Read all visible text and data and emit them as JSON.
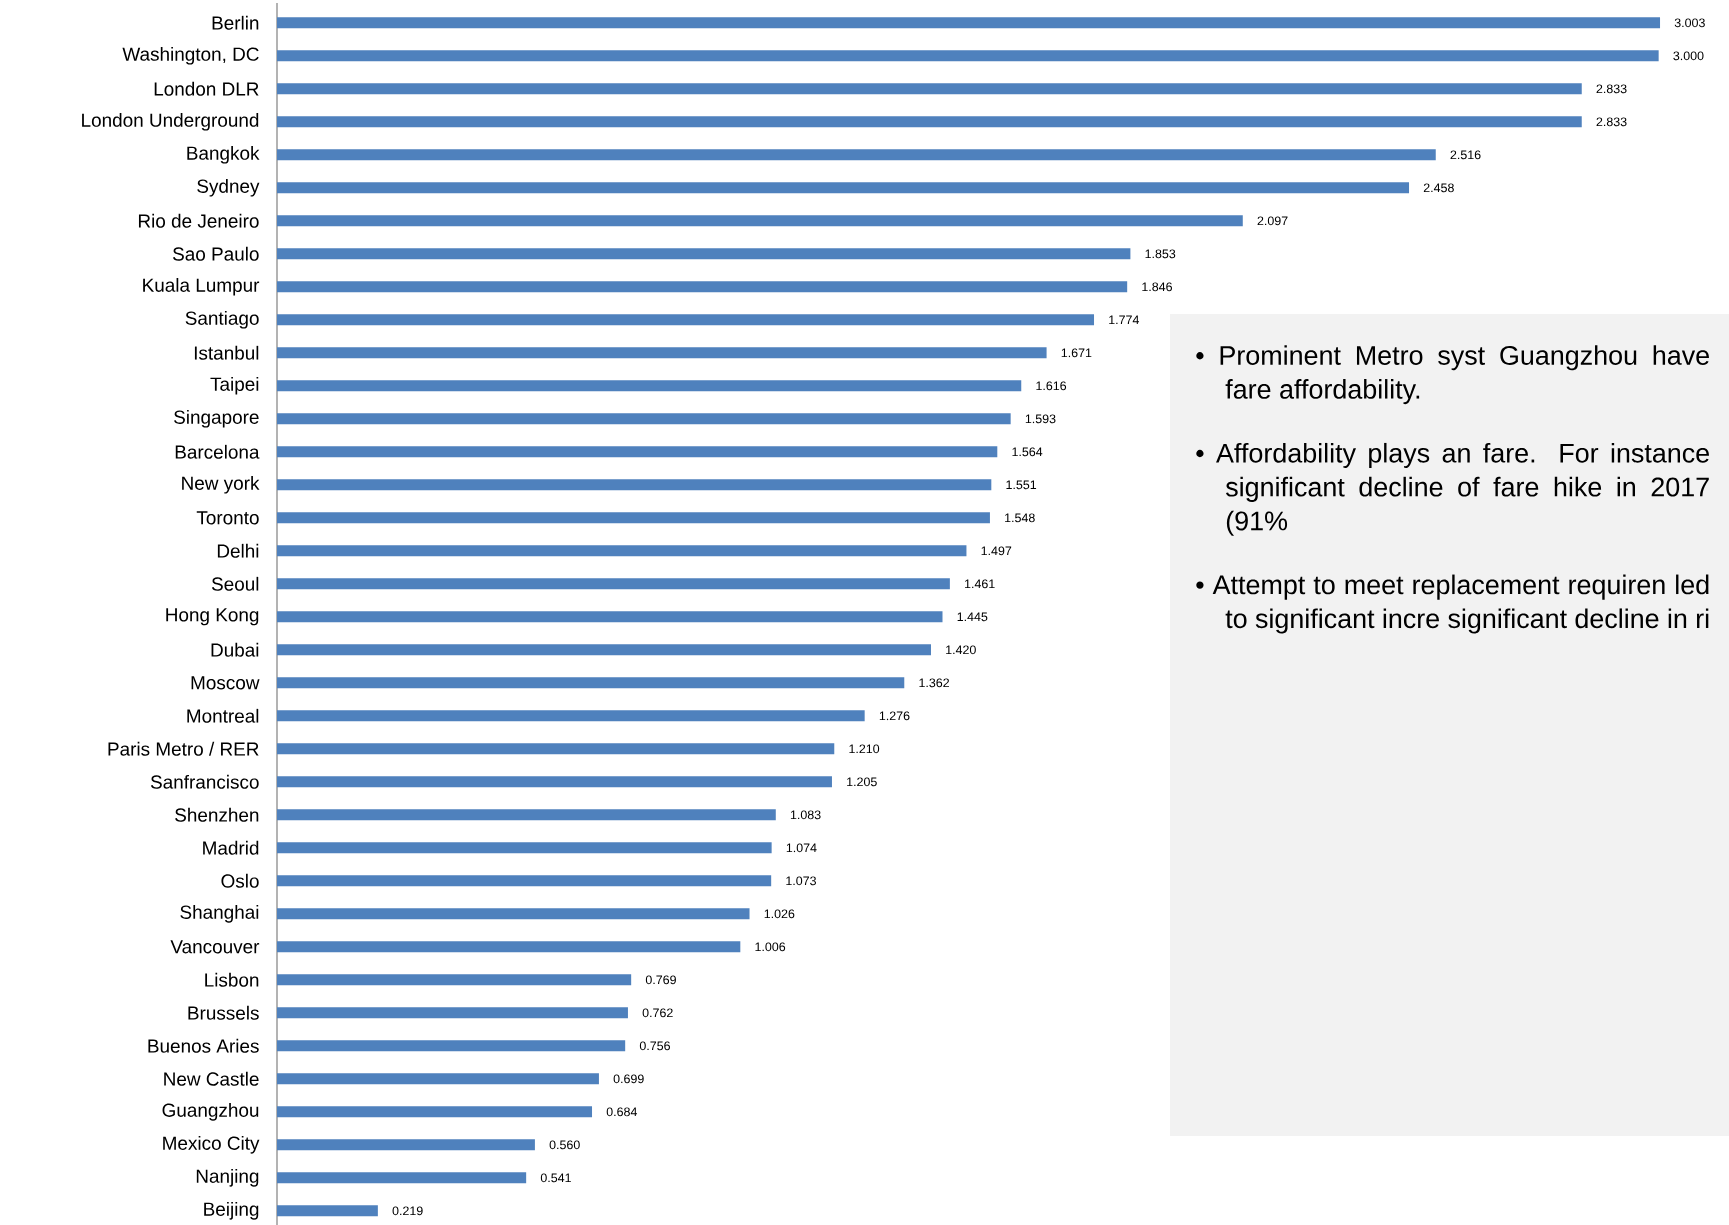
{
  "chart_data": {
    "type": "bar",
    "orientation": "horizontal",
    "color": "#4f81bd",
    "categories": [
      "Berlin",
      "Washington, DC",
      "London DLR",
      "London Underground",
      "Bangkok",
      "Sydney",
      "Rio de Jeneiro",
      "Sao Paulo",
      "Kuala Lumpur",
      "Santiago",
      "Istanbul",
      "Taipei",
      "Singapore",
      "Barcelona",
      "New york",
      "Toronto",
      "Delhi",
      "Seoul",
      "Hong Kong",
      "Dubai",
      "Moscow",
      "Montreal",
      "Paris Metro / RER",
      "Sanfrancisco",
      "Shenzhen",
      "Madrid",
      "Oslo",
      "Shanghai",
      "Vancouver",
      "Lisbon",
      "Brussels",
      "Buenos Aries",
      "New Castle",
      "Guangzhou",
      "Mexico City",
      "Nanjing",
      "Beijing"
    ],
    "values": [
      3.003,
      3.0,
      2.833,
      2.833,
      2.516,
      2.458,
      2.097,
      1.853,
      1.846,
      1.774,
      1.671,
      1.616,
      1.593,
      1.564,
      1.551,
      1.548,
      1.497,
      1.461,
      1.445,
      1.42,
      1.362,
      1.276,
      1.21,
      1.205,
      1.083,
      1.074,
      1.073,
      1.026,
      1.006,
      0.769,
      0.762,
      0.756,
      0.699,
      0.684,
      0.56,
      0.541,
      0.219
    ],
    "value_labels": [
      "3.003",
      "3.000",
      "2.833",
      "2.833",
      "2.516",
      "2.458",
      "2.097",
      "1.853",
      "1.846",
      "1.774",
      "1.671",
      "1.616",
      "1.593",
      "1.564",
      "1.551",
      "1.548",
      "1.497",
      "1.461",
      "1.445",
      "1.420",
      "1.362",
      "1.276",
      "1.210",
      "1.205",
      "1.083",
      "1.074",
      "1.073",
      "1.026",
      "1.006",
      "0.769",
      "0.762",
      "0.756",
      "0.699",
      "0.684",
      "0.560",
      "0.541",
      "0.219"
    ],
    "annotations": [
      "• Prominent Metro syst Guangzhou have fare affordability.",
      "• Affordability plays an fare. For instance significant decline of fare hike in 2017 (91%",
      "• Attempt to meet replacement requiren led to significant incre significant decline in ri"
    ]
  }
}
